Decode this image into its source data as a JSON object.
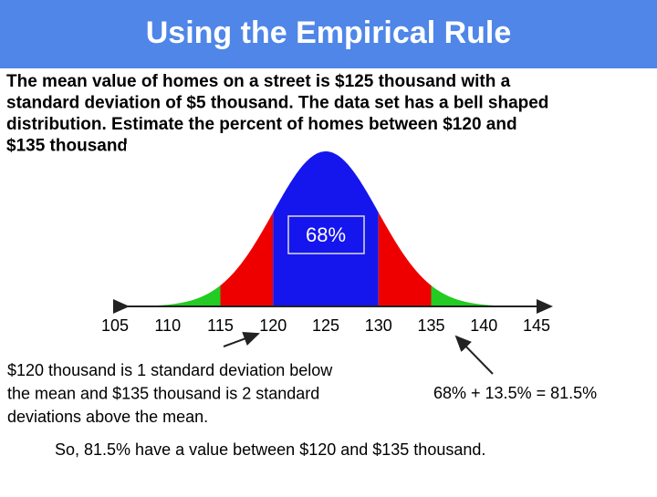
{
  "title": "Using the Empirical Rule",
  "problem_lines": [
    "The mean value of homes on a street is $125 thousand with a",
    "standard deviation of $5 thousand. The data set has a bell shaped",
    "distribution. Estimate the percent of homes between $120 and",
    "$135 thousand."
  ],
  "figure": {
    "axis_labels": [
      105,
      110,
      115,
      120,
      125,
      130,
      135,
      140,
      145
    ],
    "center_label": "68%"
  },
  "explanation_lines": [
    "$120 thousand is 1 standard deviation below",
    "the mean and $135 thousand is 2 standard",
    "deviations above the mean."
  ],
  "calculation": "68% + 13.5% = 81.5%",
  "conclusion": "So, 81.5% have a value between $120 and $135 thousand."
}
